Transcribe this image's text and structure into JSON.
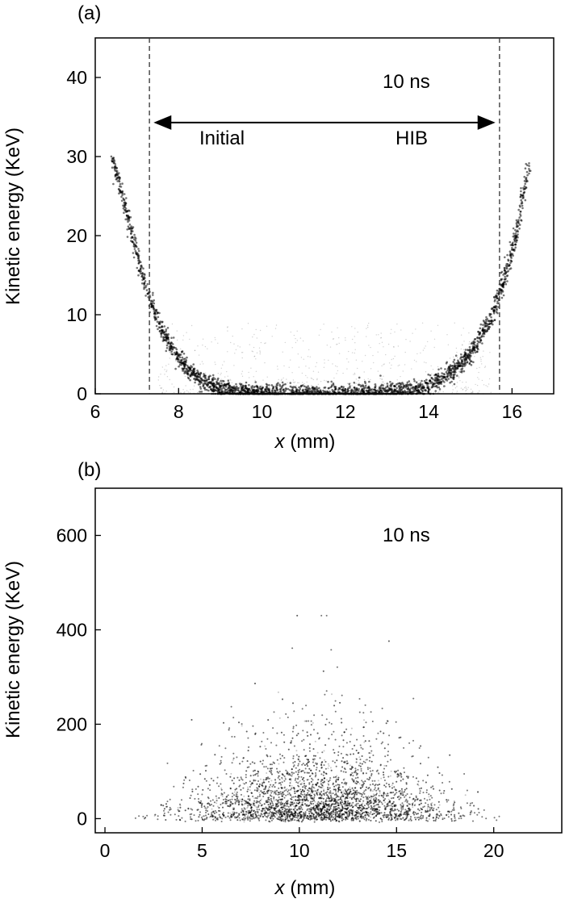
{
  "chart_data": [
    {
      "panel_label": "(a)",
      "type": "scatter",
      "time_label": "10 ns",
      "xlabel_var": "x",
      "xlabel_unit": " (mm)",
      "ylabel": "Kinetic energy (KeV)",
      "xlim": [
        6,
        17
      ],
      "ylim": [
        0,
        45
      ],
      "xticks": [
        6,
        8,
        10,
        12,
        14,
        16
      ],
      "yticks": [
        0,
        10,
        20,
        30,
        40
      ],
      "dashed_lines_x": [
        7.3,
        15.7
      ],
      "arrow": {
        "x_from": 7.4,
        "x_to": 15.6,
        "y": 34.3,
        "left_text": "Initial",
        "right_text": "HIB"
      },
      "series_description": "U-shaped distribution: E ≈ 0 for 9–14 mm, rising to ~30 KeV at x = 6.4 mm and x = 16.4 mm",
      "envelope": [
        {
          "x": 6.4,
          "y": 30
        },
        {
          "x": 6.8,
          "y": 22
        },
        {
          "x": 7.2,
          "y": 13.5
        },
        {
          "x": 7.6,
          "y": 8
        },
        {
          "x": 8.0,
          "y": 4.5
        },
        {
          "x": 8.5,
          "y": 1.8
        },
        {
          "x": 9.0,
          "y": 0.5
        },
        {
          "x": 10.0,
          "y": 0
        },
        {
          "x": 12.0,
          "y": 0
        },
        {
          "x": 13.5,
          "y": 0.4
        },
        {
          "x": 14.0,
          "y": 1.0
        },
        {
          "x": 14.5,
          "y": 2.5
        },
        {
          "x": 15.0,
          "y": 5.0
        },
        {
          "x": 15.5,
          "y": 9.5
        },
        {
          "x": 15.8,
          "y": 14
        },
        {
          "x": 16.1,
          "y": 20
        },
        {
          "x": 16.4,
          "y": 29
        }
      ]
    },
    {
      "panel_label": "(b)",
      "type": "scatter",
      "time_label": "10 ns",
      "xlabel_var": "x",
      "xlabel_unit": " (mm)",
      "ylabel": "Kinetic energy (KeV)",
      "xlim": [
        -0.5,
        23.5
      ],
      "ylim": [
        -30,
        700
      ],
      "xticks": [
        0,
        5,
        10,
        15,
        20
      ],
      "yticks": [
        0,
        200,
        400,
        600
      ],
      "series_description": "Dome-shaped cloud centered near x = 11 mm, dense below ~100 KeV, sparse up to ~400 KeV",
      "envelope": [
        {
          "x": 2,
          "y": 20
        },
        {
          "x": 4,
          "y": 120
        },
        {
          "x": 6,
          "y": 220
        },
        {
          "x": 8,
          "y": 290
        },
        {
          "x": 11,
          "y": 330
        },
        {
          "x": 14,
          "y": 290
        },
        {
          "x": 16,
          "y": 210
        },
        {
          "x": 18,
          "y": 120
        },
        {
          "x": 20,
          "y": 20
        }
      ]
    }
  ]
}
